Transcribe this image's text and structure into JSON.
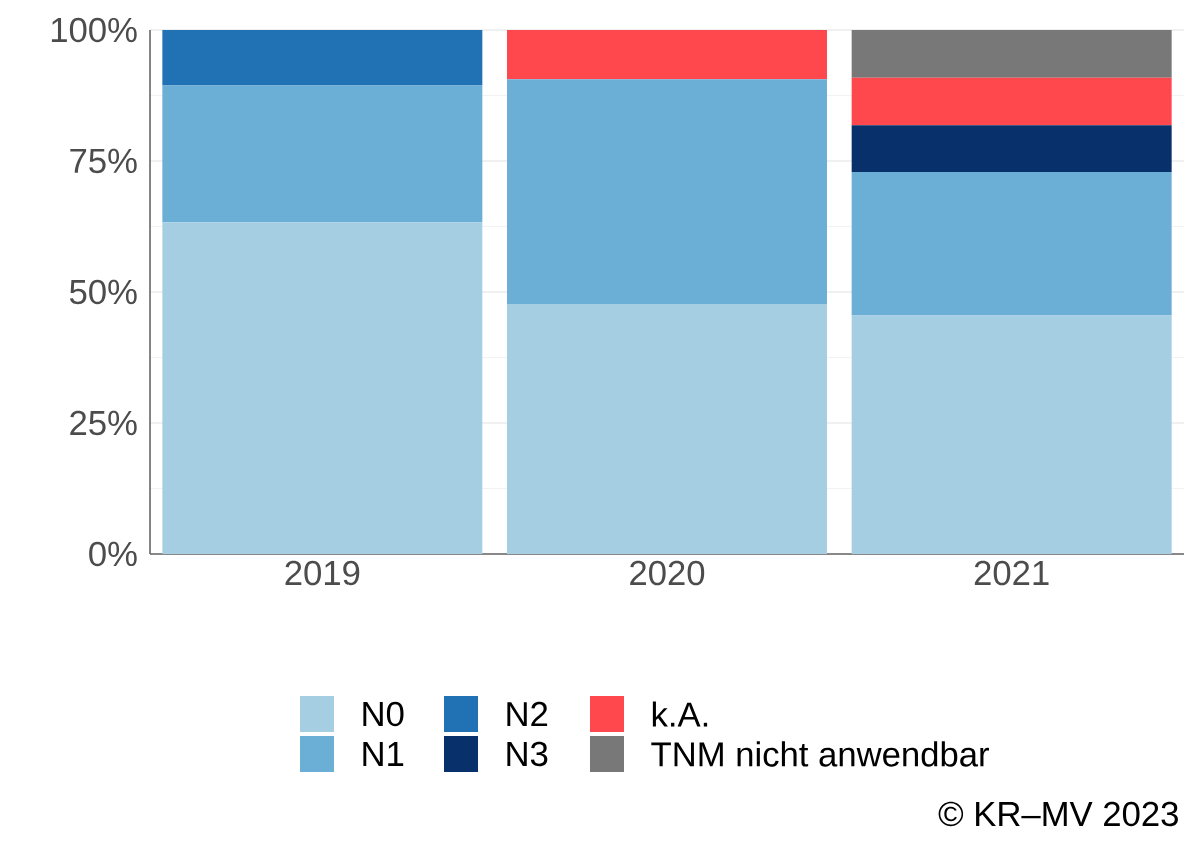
{
  "chart_data": {
    "type": "bar",
    "stacked": true,
    "categories": [
      "2019",
      "2020",
      "2021"
    ],
    "series": [
      {
        "name": "N0",
        "color": "#a6cee3",
        "values": [
          63.3,
          47.7,
          45.5
        ]
      },
      {
        "name": "N1",
        "color": "#6baed6",
        "values": [
          26.1,
          42.9,
          27.4
        ]
      },
      {
        "name": "N2",
        "color": "#2171b5",
        "values": [
          10.6,
          null,
          null
        ]
      },
      {
        "name": "N3",
        "color": "#08306b",
        "values": [
          null,
          null,
          8.9
        ]
      },
      {
        "name": "k.A.",
        "color": "#ff474e",
        "values": [
          null,
          9.4,
          9.1
        ]
      },
      {
        "name": "TNM nicht anwendbar",
        "color": "#787878",
        "values": [
          null,
          null,
          9.1
        ]
      }
    ],
    "ylim": [
      0,
      100
    ],
    "yticks": [
      {
        "value": 0,
        "label": "0%"
      },
      {
        "value": 25,
        "label": "25%"
      },
      {
        "value": 50,
        "label": "50%"
      },
      {
        "value": 75,
        "label": "75%"
      },
      {
        "value": 100,
        "label": "100%"
      }
    ],
    "grid": "y",
    "legend": "bottom",
    "annotations": [
      "© KR–MV 2023"
    ]
  }
}
